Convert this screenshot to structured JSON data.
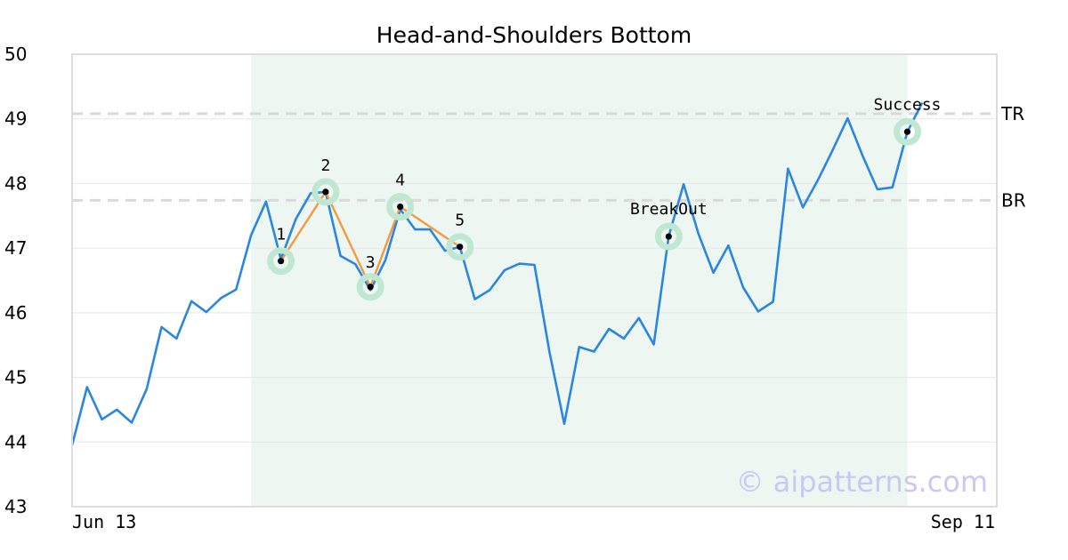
{
  "colors": {
    "price_line": "#2b86e0",
    "pattern_line": "#f39a3f",
    "highlight_region": "#eef6f2",
    "marker_halo": "#bfe7d2",
    "marker_dot": "#000000",
    "level_line": "#d9d9d9",
    "grid": "#e6e6e6",
    "frame": "#dddddd",
    "watermark": "#c8c8f4"
  },
  "watermark": "© aipatterns.com",
  "chart_data": {
    "type": "line",
    "title": "Head-and-Shoulders Bottom",
    "xlabel": "",
    "ylabel": "",
    "ylim": [
      43,
      50
    ],
    "yticks": [
      "43",
      "44",
      "45",
      "46",
      "47",
      "48",
      "49",
      "50"
    ],
    "xtick_labels": [
      "Jun 13",
      "Sep 11"
    ],
    "grid": "horizontal",
    "x_range": [
      0,
      62
    ],
    "x_start_date": "Jun 13",
    "x_end_date": "Sep 11",
    "series": [
      {
        "values": [
          43.95,
          44.85,
          44.35,
          44.5,
          44.3,
          44.82,
          45.78,
          45.6,
          46.18,
          46.01,
          46.23,
          46.36,
          47.2,
          47.72,
          46.83,
          47.45,
          47.85,
          47.87,
          46.88,
          46.75,
          46.35,
          46.81,
          47.6,
          47.29,
          47.29,
          46.96,
          47.02,
          46.21,
          46.35,
          46.66,
          46.76,
          46.74,
          45.4,
          44.28,
          45.47,
          45.4,
          45.75,
          45.6,
          45.92,
          45.51,
          47.18,
          47.99,
          47.22,
          46.62,
          47.04,
          46.39,
          46.02,
          46.17,
          48.23,
          47.63,
          48.05,
          48.52,
          49.01,
          48.43,
          47.91,
          47.94,
          48.8,
          49.25
        ]
      }
    ],
    "highlight_region": {
      "x_start": 12,
      "x_end": 56
    },
    "levels": [
      {
        "label": "TR",
        "value": 49.08
      },
      {
        "label": "BR",
        "value": 47.74
      }
    ],
    "pattern_points": [
      {
        "label": "1",
        "x": 14,
        "y": 46.8
      },
      {
        "label": "2",
        "x": 17,
        "y": 47.87
      },
      {
        "label": "3",
        "x": 20,
        "y": 46.4
      },
      {
        "label": "4",
        "x": 22,
        "y": 47.64
      },
      {
        "label": "5",
        "x": 26,
        "y": 47.02
      }
    ],
    "events": [
      {
        "label": "BreakOut",
        "x": 40,
        "y": 47.18
      },
      {
        "label": "Success",
        "x": 56,
        "y": 48.8
      }
    ]
  }
}
